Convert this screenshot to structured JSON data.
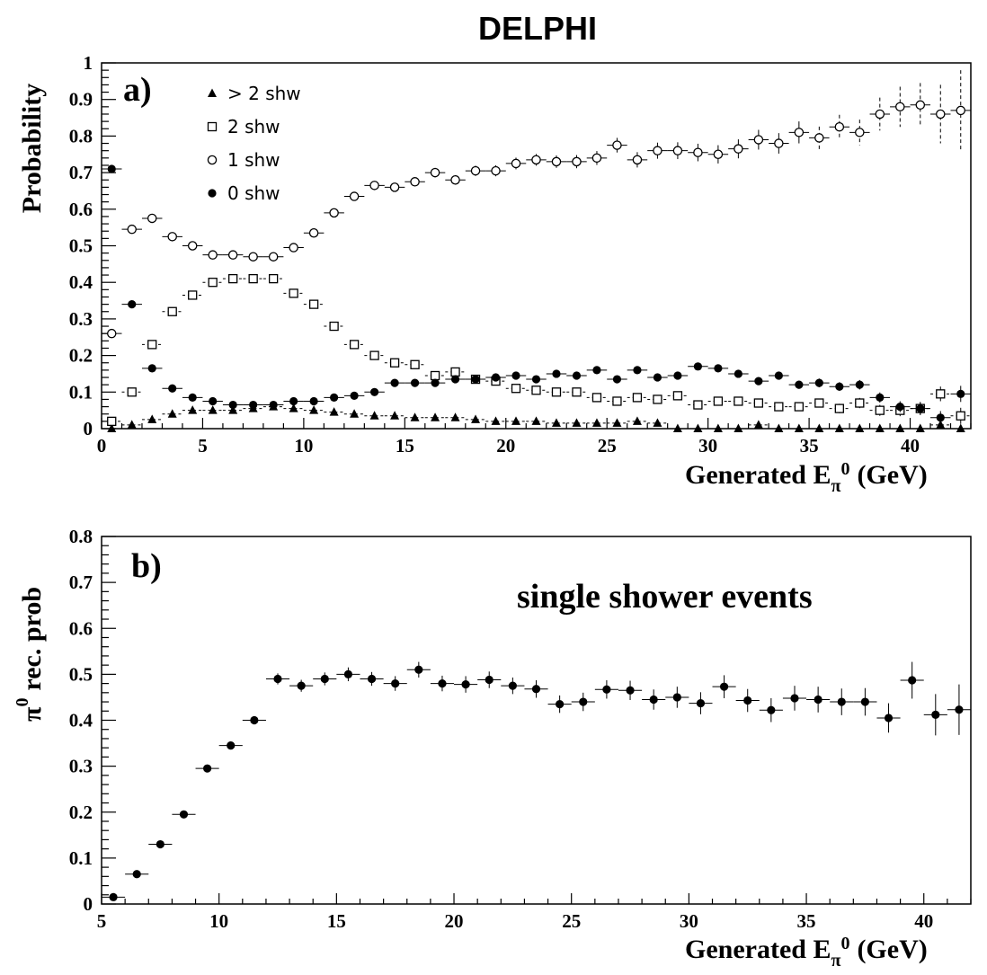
{
  "title": "DELPHI",
  "chart_data": [
    {
      "type": "scatter",
      "panel_label": "a)",
      "xlabel": "Generated  E",
      "xlabel_sub": "π",
      "xlabel_sup": "0",
      "xlabel_unit": "(GeV)",
      "ylabel": "Probability",
      "xlim": [
        0,
        43
      ],
      "ylim": [
        0,
        1
      ],
      "xticks": [
        0,
        5,
        10,
        15,
        20,
        25,
        30,
        35,
        40
      ],
      "yticks": [
        0,
        0.1,
        0.2,
        0.3,
        0.4,
        0.5,
        0.6,
        0.7,
        0.8,
        0.9,
        1
      ],
      "ytick_labels": [
        "0",
        "0.1",
        "0.2",
        "0.3",
        "0.4",
        "0.5",
        "0.6",
        "0.7",
        "0.8",
        "0.9",
        "1"
      ],
      "xtick_labels": [
        "0",
        "5",
        "10",
        "15",
        "20",
        "25",
        "30",
        "35",
        "40"
      ],
      "legend_position": "top-left",
      "x": [
        0.5,
        1.5,
        2.5,
        3.5,
        4.5,
        5.5,
        6.5,
        7.5,
        8.5,
        9.5,
        10.5,
        11.5,
        12.5,
        13.5,
        14.5,
        15.5,
        16.5,
        17.5,
        18.5,
        19.5,
        20.5,
        21.5,
        22.5,
        23.5,
        24.5,
        25.5,
        26.5,
        27.5,
        28.5,
        29.5,
        30.5,
        31.5,
        32.5,
        33.5,
        34.5,
        35.5,
        36.5,
        37.5,
        38.5,
        39.5,
        40.5,
        41.5,
        42.5
      ],
      "series": [
        {
          "name": "> 2 shw",
          "marker": "triangle",
          "values": [
            0.0,
            0.01,
            0.025,
            0.04,
            0.05,
            0.05,
            0.05,
            0.055,
            0.06,
            0.055,
            0.05,
            0.045,
            0.04,
            0.035,
            0.035,
            0.03,
            0.03,
            0.03,
            0.025,
            0.02,
            0.02,
            0.02,
            0.015,
            0.015,
            0.015,
            0.015,
            0.02,
            0.015,
            0.0,
            0.0,
            0.0,
            0.0,
            0.01,
            0.0,
            0.0,
            0.0,
            0.0,
            0.0,
            0.0,
            0.0,
            0.0,
            0.01,
            0.0
          ],
          "errors": [
            0.003,
            0.003,
            0.003,
            0.004,
            0.004,
            0.004,
            0.004,
            0.004,
            0.004,
            0.004,
            0.004,
            0.004,
            0.004,
            0.004,
            0.004,
            0.004,
            0.004,
            0.004,
            0.004,
            0.004,
            0.004,
            0.004,
            0.004,
            0.004,
            0.004,
            0.004,
            0.004,
            0.004,
            0.003,
            0.003,
            0.003,
            0.003,
            0.003,
            0.003,
            0.003,
            0.003,
            0.003,
            0.003,
            0.003,
            0.003,
            0.003,
            0.004,
            0.003
          ]
        },
        {
          "name": "2 shw",
          "marker": "square",
          "values": [
            0.02,
            0.1,
            0.23,
            0.32,
            0.365,
            0.4,
            0.41,
            0.41,
            0.41,
            0.37,
            0.34,
            0.28,
            0.23,
            0.2,
            0.18,
            0.175,
            0.145,
            0.155,
            0.135,
            0.13,
            0.11,
            0.105,
            0.1,
            0.1,
            0.085,
            0.075,
            0.085,
            0.08,
            0.09,
            0.065,
            0.075,
            0.075,
            0.07,
            0.06,
            0.06,
            0.07,
            0.055,
            0.07,
            0.05,
            0.05,
            0.055,
            0.095,
            0.035
          ],
          "errors": [
            0.005,
            0.005,
            0.005,
            0.005,
            0.005,
            0.005,
            0.005,
            0.005,
            0.005,
            0.005,
            0.005,
            0.005,
            0.005,
            0.005,
            0.006,
            0.006,
            0.006,
            0.006,
            0.006,
            0.007,
            0.007,
            0.007,
            0.007,
            0.008,
            0.008,
            0.008,
            0.008,
            0.009,
            0.009,
            0.009,
            0.01,
            0.01,
            0.01,
            0.011,
            0.012,
            0.012,
            0.013,
            0.014,
            0.015,
            0.016,
            0.018,
            0.02,
            0.022
          ]
        },
        {
          "name": "1 shw",
          "marker": "circle-open",
          "values": [
            0.26,
            0.545,
            0.575,
            0.525,
            0.5,
            0.475,
            0.475,
            0.47,
            0.47,
            0.495,
            0.535,
            0.59,
            0.635,
            0.665,
            0.66,
            0.675,
            0.7,
            0.68,
            0.705,
            0.705,
            0.725,
            0.735,
            0.73,
            0.73,
            0.74,
            0.775,
            0.735,
            0.76,
            0.76,
            0.755,
            0.75,
            0.765,
            0.79,
            0.78,
            0.81,
            0.795,
            0.825,
            0.81,
            0.86,
            0.88,
            0.885,
            0.86,
            0.87
          ],
          "errors": [
            0.008,
            0.008,
            0.008,
            0.008,
            0.008,
            0.008,
            0.008,
            0.008,
            0.008,
            0.008,
            0.009,
            0.009,
            0.01,
            0.01,
            0.011,
            0.012,
            0.013,
            0.013,
            0.014,
            0.015,
            0.016,
            0.016,
            0.017,
            0.018,
            0.019,
            0.02,
            0.021,
            0.022,
            0.023,
            0.024,
            0.025,
            0.026,
            0.027,
            0.028,
            0.03,
            0.031,
            0.033,
            0.035,
            0.045,
            0.055,
            0.06,
            0.08,
            0.11
          ]
        },
        {
          "name": "0 shw",
          "marker": "circle-filled",
          "values": [
            0.71,
            0.34,
            0.165,
            0.11,
            0.085,
            0.075,
            0.065,
            0.065,
            0.065,
            0.075,
            0.075,
            0.085,
            0.09,
            0.1,
            0.125,
            0.125,
            0.125,
            0.135,
            0.135,
            0.14,
            0.145,
            0.135,
            0.15,
            0.145,
            0.16,
            0.135,
            0.16,
            0.14,
            0.145,
            0.17,
            0.165,
            0.15,
            0.13,
            0.145,
            0.12,
            0.125,
            0.115,
            0.12,
            0.085,
            0.06,
            0.055,
            0.03,
            0.095
          ],
          "errors": [
            0.008,
            0.007,
            0.006,
            0.005,
            0.005,
            0.005,
            0.005,
            0.005,
            0.005,
            0.005,
            0.005,
            0.005,
            0.006,
            0.006,
            0.006,
            0.006,
            0.006,
            0.006,
            0.007,
            0.007,
            0.007,
            0.007,
            0.008,
            0.008,
            0.008,
            0.008,
            0.008,
            0.009,
            0.009,
            0.009,
            0.01,
            0.01,
            0.01,
            0.011,
            0.011,
            0.012,
            0.012,
            0.013,
            0.014,
            0.015,
            0.016,
            0.018,
            0.022
          ]
        }
      ]
    },
    {
      "type": "scatter",
      "panel_label": "b)",
      "annotation": "single shower events",
      "xlabel": "Generated  E",
      "xlabel_sub": "π",
      "xlabel_sup": "0",
      "xlabel_unit": "(GeV)",
      "ylabel_sym": "π",
      "ylabel_sup": "0",
      "ylabel_rest": "rec. prob",
      "xlim": [
        5,
        42
      ],
      "ylim": [
        0,
        0.8
      ],
      "xticks": [
        5,
        10,
        15,
        20,
        25,
        30,
        35,
        40
      ],
      "xtick_labels": [
        "5",
        "10",
        "15",
        "20",
        "25",
        "30",
        "35",
        "40"
      ],
      "yticks": [
        0,
        0.1,
        0.2,
        0.3,
        0.4,
        0.5,
        0.6,
        0.7,
        0.8
      ],
      "ytick_labels": [
        "0",
        "0.1",
        "0.2",
        "0.3",
        "0.4",
        "0.5",
        "0.6",
        "0.7",
        "0.8"
      ],
      "x": [
        5.5,
        6.5,
        7.5,
        8.5,
        9.5,
        10.5,
        11.5,
        12.5,
        13.5,
        14.5,
        15.5,
        16.5,
        17.5,
        18.5,
        19.5,
        20.5,
        21.5,
        22.5,
        23.5,
        24.5,
        25.5,
        26.5,
        27.5,
        28.5,
        29.5,
        30.5,
        31.5,
        32.5,
        33.5,
        34.5,
        35.5,
        36.5,
        37.5,
        38.5,
        39.5,
        40.5,
        41.5
      ],
      "series": [
        {
          "marker": "circle-filled",
          "values": [
            0.015,
            0.065,
            0.13,
            0.195,
            0.295,
            0.345,
            0.4,
            0.49,
            0.475,
            0.49,
            0.5,
            0.49,
            0.48,
            0.51,
            0.48,
            0.478,
            0.488,
            0.475,
            0.468,
            0.435,
            0.44,
            0.467,
            0.465,
            0.445,
            0.45,
            0.437,
            0.473,
            0.443,
            0.422,
            0.448,
            0.445,
            0.44,
            0.44,
            0.405,
            0.487,
            0.412,
            0.423
          ],
          "errors": [
            0.004,
            0.005,
            0.006,
            0.006,
            0.007,
            0.008,
            0.009,
            0.012,
            0.013,
            0.014,
            0.015,
            0.015,
            0.016,
            0.017,
            0.017,
            0.018,
            0.018,
            0.018,
            0.019,
            0.019,
            0.02,
            0.02,
            0.021,
            0.022,
            0.023,
            0.024,
            0.025,
            0.025,
            0.026,
            0.027,
            0.028,
            0.029,
            0.03,
            0.032,
            0.04,
            0.045,
            0.055
          ]
        }
      ]
    }
  ]
}
